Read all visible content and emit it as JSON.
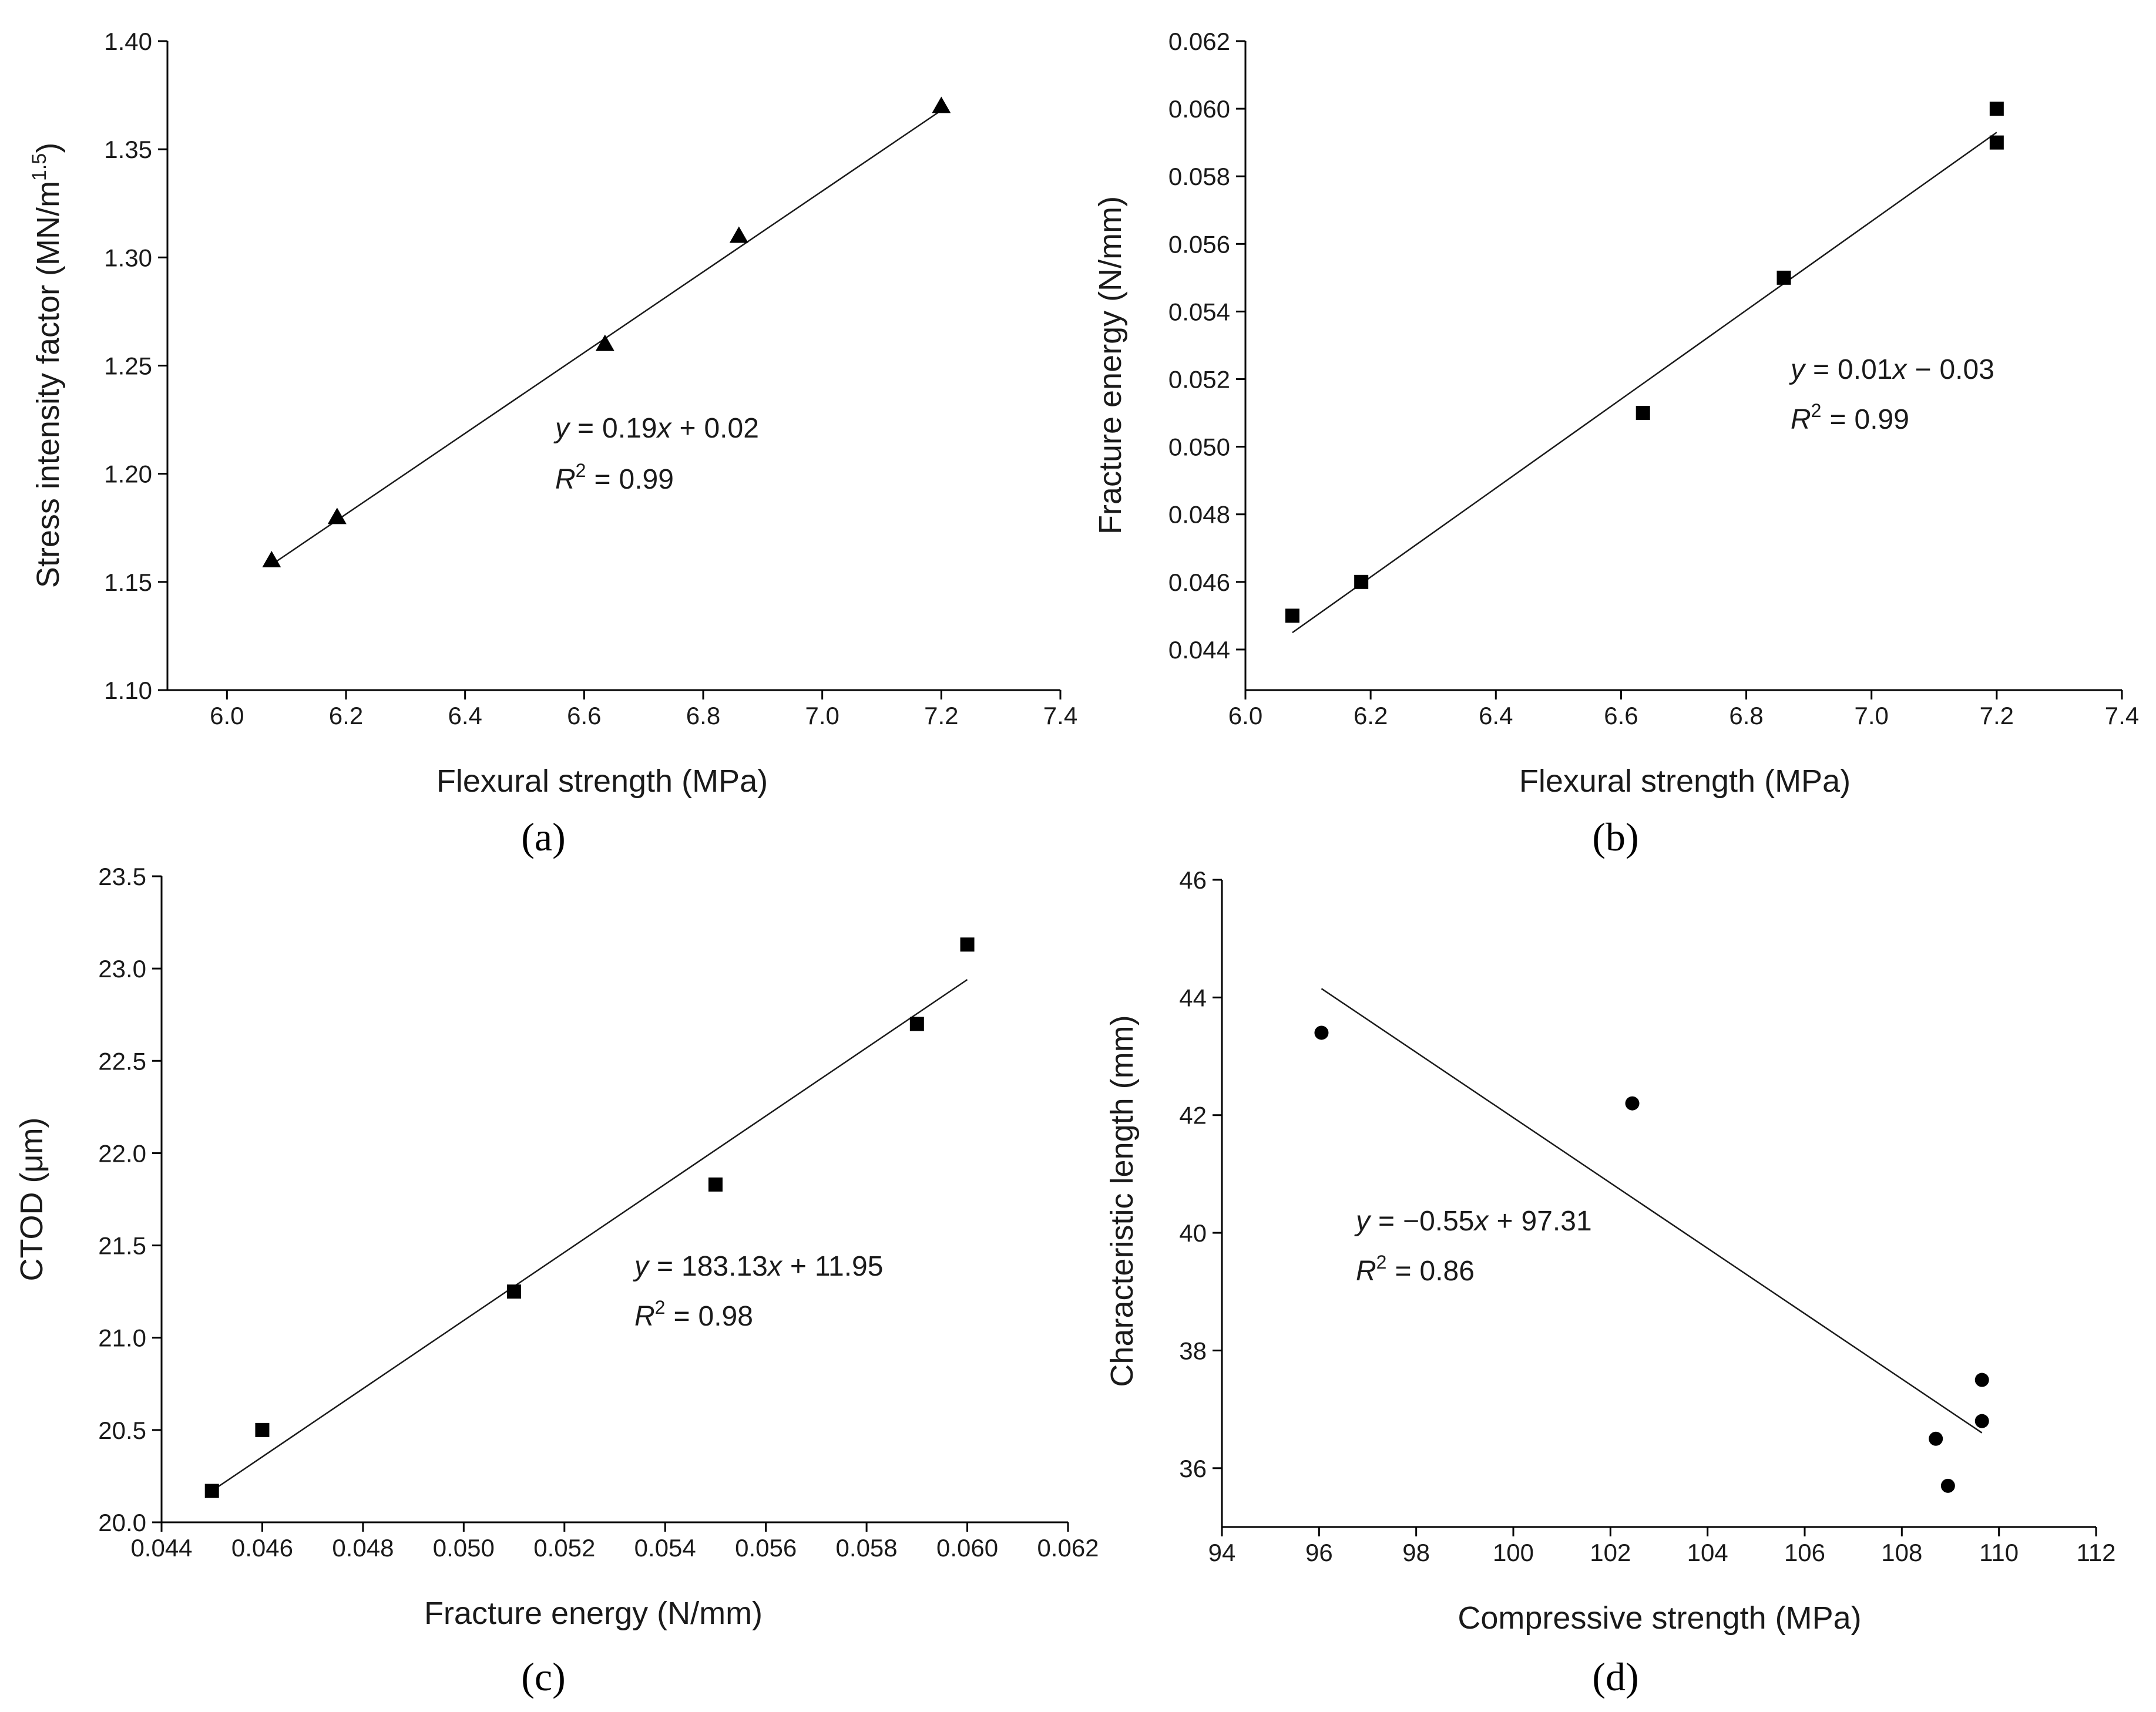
{
  "chart_data": [
    {
      "type": "scatter",
      "panel_label": "(a)",
      "xlabel": "Flexural strength (MPa)",
      "ylabel_main": "Stress intensity factor (MN/m",
      "ylabel_sup": "1.5",
      "ylabel_close": ")",
      "xlim": [
        5.9,
        7.4
      ],
      "ylim": [
        1.1,
        1.4
      ],
      "xticks": [
        "6.0",
        "6.2",
        "6.4",
        "6.6",
        "6.8",
        "7.0",
        "7.2",
        "7.4"
      ],
      "yticks": [
        "1.10",
        "1.15",
        "1.20",
        "1.25",
        "1.30",
        "1.35",
        "1.40"
      ],
      "marker": "triangle",
      "series": [
        {
          "name": "data",
          "x": [
            6.075,
            6.185,
            6.635,
            6.86,
            7.2
          ],
          "y": [
            1.16,
            1.18,
            1.26,
            1.31,
            1.37
          ]
        }
      ],
      "fit_line": {
        "x": [
          6.075,
          7.2
        ],
        "y": [
          1.158,
          1.368
        ]
      },
      "equation": {
        "y_var": "y",
        "eq_sign": "=",
        "slope": "0.19",
        "x_var": "x",
        "op": "+",
        "intercept": "0.02",
        "r_var": "R",
        "r_sup": "2",
        "r_eq": "=",
        "r_value": "0.99"
      }
    },
    {
      "type": "scatter",
      "panel_label": "(b)",
      "xlabel": "Flexural strength (MPa)",
      "ylabel_main": "Fracture energy (N/mm)",
      "ylabel_sup": "",
      "ylabel_close": "",
      "xlim": [
        6.0,
        7.4
      ],
      "ylim": [
        0.0428,
        0.062
      ],
      "xticks": [
        "6.0",
        "6.2",
        "6.4",
        "6.6",
        "6.8",
        "7.0",
        "7.2",
        "7.4"
      ],
      "yticks": [
        "0.044",
        "0.046",
        "0.048",
        "0.050",
        "0.052",
        "0.054",
        "0.056",
        "0.058",
        "0.060",
        "0.062"
      ],
      "marker": "square",
      "series": [
        {
          "name": "data",
          "x": [
            6.075,
            6.185,
            6.635,
            6.86,
            7.2,
            7.2
          ],
          "y": [
            0.045,
            0.046,
            0.051,
            0.055,
            0.059,
            0.06
          ]
        }
      ],
      "fit_line": {
        "x": [
          6.075,
          7.2
        ],
        "y": [
          0.0445,
          0.0593
        ]
      },
      "equation": {
        "y_var": "y",
        "eq_sign": "=",
        "slope": "0.01",
        "x_var": "x",
        "op": "−",
        "intercept": "0.03",
        "r_var": "R",
        "r_sup": "2",
        "r_eq": "=",
        "r_value": "0.99"
      }
    },
    {
      "type": "scatter",
      "panel_label": "(c)",
      "xlabel": "Fracture energy (N/mm)",
      "ylabel_main": "CTOD (μm)",
      "ylabel_sup": "",
      "ylabel_close": "",
      "xlim": [
        0.044,
        0.062
      ],
      "ylim": [
        20.0,
        23.5
      ],
      "xticks": [
        "0.044",
        "0.046",
        "0.048",
        "0.050",
        "0.052",
        "0.054",
        "0.056",
        "0.058",
        "0.060",
        "0.062"
      ],
      "yticks": [
        "20.0",
        "20.5",
        "21.0",
        "21.5",
        "22.0",
        "22.5",
        "23.0",
        "23.5"
      ],
      "marker": "square",
      "series": [
        {
          "name": "data",
          "x": [
            0.045,
            0.046,
            0.051,
            0.055,
            0.059,
            0.06
          ],
          "y": [
            20.17,
            20.5,
            21.25,
            21.83,
            22.7,
            23.13
          ]
        }
      ],
      "fit_line": {
        "x": [
          0.045,
          0.06
        ],
        "y": [
          20.17,
          22.94
        ]
      },
      "equation": {
        "y_var": "y",
        "eq_sign": "=",
        "slope": "183.13",
        "x_var": "x",
        "op": "+",
        "intercept": "11.95",
        "r_var": "R",
        "r_sup": "2",
        "r_eq": "=",
        "r_value": "0.98"
      }
    },
    {
      "type": "scatter",
      "panel_label": "(d)",
      "xlabel": "Compressive strength (MPa)",
      "ylabel_main": "Characteristic length (mm)",
      "ylabel_sup": "",
      "ylabel_close": "",
      "xlim": [
        94,
        112
      ],
      "ylim": [
        35.0,
        46.0
      ],
      "xticks": [
        "94",
        "96",
        "98",
        "100",
        "102",
        "104",
        "106",
        "108",
        "110",
        "112"
      ],
      "yticks": [
        "36",
        "38",
        "40",
        "42",
        "44",
        "46"
      ],
      "marker": "circle",
      "series": [
        {
          "name": "data",
          "x": [
            96.05,
            102.45,
            108.7,
            108.95,
            109.65,
            109.65
          ],
          "y": [
            43.4,
            42.2,
            36.5,
            35.7,
            37.5,
            36.8
          ]
        }
      ],
      "fit_line": {
        "x": [
          96.05,
          109.65
        ],
        "y": [
          44.15,
          36.6
        ]
      },
      "equation": {
        "y_var": "y",
        "eq_sign": "=",
        "neg_sign": "−",
        "slope": "0.55",
        "x_var": "x",
        "op": "+",
        "intercept": "97.31",
        "r_var": "R",
        "r_sup": "2",
        "r_eq": "=",
        "r_value": "0.86"
      }
    }
  ]
}
